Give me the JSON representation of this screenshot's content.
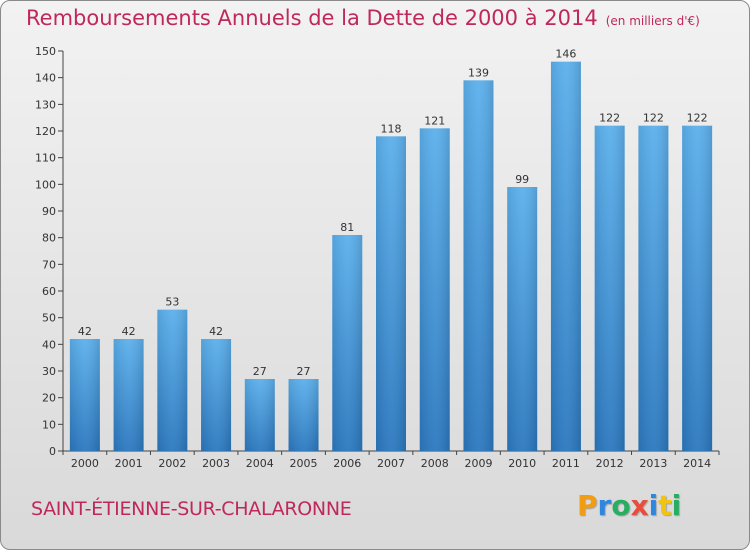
{
  "title": "Remboursements Annuels de la Dette de 2000 à 2014",
  "unit": "(en milliers d'€)",
  "commune": "SAINT-ÉTIENNE-SUR-CHALARONNE",
  "logo": {
    "letters": [
      "P",
      "r",
      "o",
      "x",
      "i",
      "t",
      "i"
    ],
    "colors": [
      "#f39c12",
      "#2e86de",
      "#27ae60",
      "#e74c3c",
      "#2e86de",
      "#f1c40f",
      "#27ae60"
    ]
  },
  "colors": {
    "accent": "#c0285a",
    "bar_light": "#5aaeea",
    "bar_dark": "#2f7fc4"
  },
  "chart_data": {
    "type": "bar",
    "title": "Remboursements Annuels de la Dette de 2000 à 2014",
    "categories": [
      "2000",
      "2001",
      "2002",
      "2003",
      "2004",
      "2005",
      "2006",
      "2007",
      "2008",
      "2009",
      "2010",
      "2011",
      "2012",
      "2013",
      "2014"
    ],
    "values": [
      42,
      42,
      53,
      42,
      27,
      27,
      81,
      118,
      121,
      139,
      99,
      146,
      122,
      122,
      122
    ],
    "ylim": [
      0,
      150
    ],
    "yticks": [
      0,
      10,
      20,
      30,
      40,
      50,
      60,
      70,
      80,
      90,
      100,
      110,
      120,
      130,
      140,
      150
    ],
    "grid": false,
    "data_labels": true
  }
}
